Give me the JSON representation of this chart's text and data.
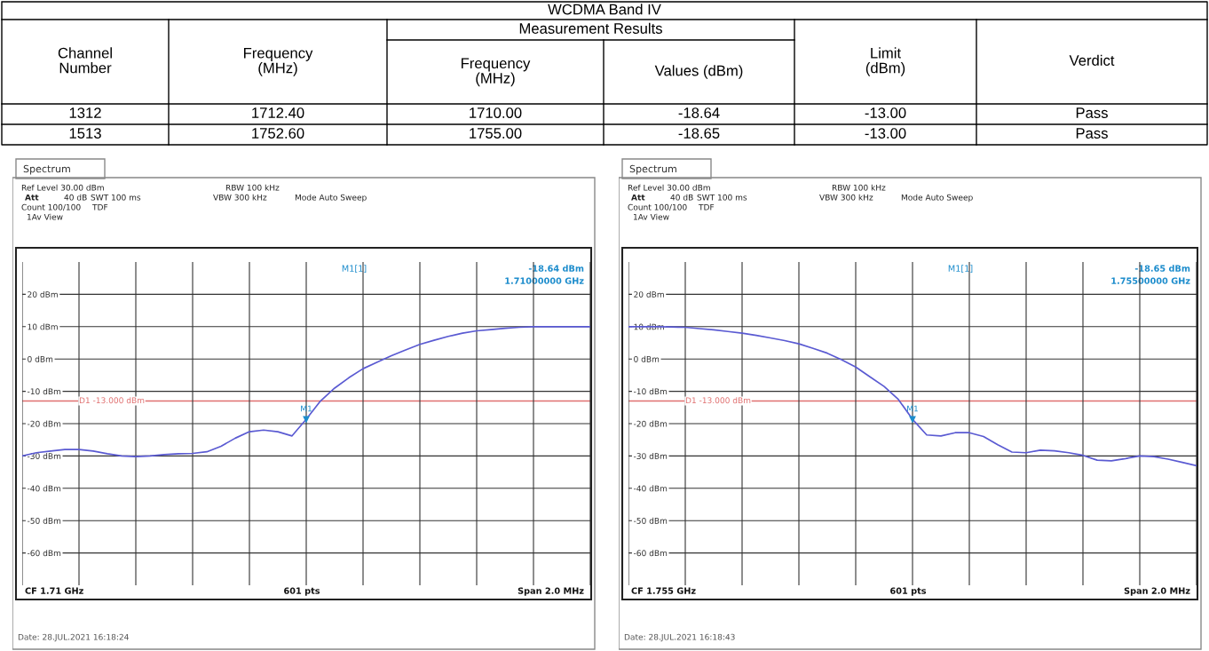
{
  "chart_data": [
    {
      "type": "other",
      "title": "WCDMA Band IV",
      "annotations": [
        "Channel\nNumber",
        "Frequency\n(MHz)",
        "Measurement Results",
        "Frequency\n(MHz)",
        "Values (dBm)",
        "Limit\n(dBm)",
        "Verdict",
        "1312",
        "1712.40",
        "1710.00",
        "-18.64",
        "-13.00",
        "Pass",
        "1513",
        "1752.60",
        "1755.00",
        "-18.65",
        "-13.00",
        "Pass"
      ]
    },
    {
      "type": "line",
      "categories": [
        null,
        null,
        null,
        null,
        null,
        null,
        null,
        null,
        null,
        null,
        null,
        null,
        null,
        null,
        null,
        null,
        null,
        null,
        null,
        null,
        null,
        null,
        null,
        null,
        null,
        null,
        null,
        null,
        null,
        null,
        null,
        null,
        null,
        null,
        null,
        null,
        null,
        null,
        null,
        null,
        null
      ],
      "series": [
        {
          "color": "#5a5ad2",
          "values": [
            -30,
            -29,
            -28.5,
            -28,
            -28,
            -28.5,
            -29.3,
            -30,
            -30.2,
            -30,
            -29.6,
            -29.3,
            -29.2,
            -28.7,
            -27,
            -24.5,
            -22.5,
            -22,
            -22.5,
            -23.8,
            -18.64,
            -13,
            -9,
            -5.8,
            -3,
            -1,
            1,
            2.8,
            4.5,
            5.8,
            7,
            8,
            8.7,
            9.1,
            9.5,
            9.8,
            10,
            10,
            10,
            10,
            10
          ]
        }
      ],
      "ylim": [
        -70,
        30
      ],
      "yticks": [
        {
          "value": -60,
          "label": "-60 dBm"
        },
        {
          "value": -50,
          "label": "-50 dBm"
        },
        {
          "value": -40,
          "label": "-40 dBm"
        },
        {
          "value": -30,
          "label": "-30 dBm"
        },
        {
          "value": -20,
          "label": "-20 dBm"
        },
        {
          "value": -10,
          "label": "-10 dBm"
        },
        {
          "value": 0,
          "label": "0 dBm"
        },
        {
          "value": 10,
          "label": "10 dBm"
        },
        {
          "value": 20,
          "label": "20 dBm"
        }
      ],
      "grid": true,
      "tick_labels": "y",
      "ref_lines": [
        {
          "axis": "y",
          "value": -13,
          "label": "D1 -13.000 dBm",
          "color": "#e07070"
        }
      ],
      "annotations": [
        "Spectrum",
        "Ref Level 30.00 dBm",
        "RBW 100 kHz",
        "Att",
        "40 dB",
        "SWT 100 ms",
        "VBW 300 kHz",
        "Mode Auto Sweep",
        "Count 100/100",
        "TDF",
        "1Av View",
        "M1[1]",
        "-18.64 dBm",
        "1.71000000 GHz",
        "CF 1.71 GHz",
        "601 pts",
        "Span 2.0 MHz",
        "Date: 28.JUL.2021 16:18:24",
        {
          "text": "M1",
          "y": -18.64
        }
      ]
    },
    {
      "type": "line",
      "categories": [
        null,
        null,
        null,
        null,
        null,
        null,
        null,
        null,
        null,
        null,
        null,
        null,
        null,
        null,
        null,
        null,
        null,
        null,
        null,
        null,
        null,
        null,
        null,
        null,
        null,
        null,
        null,
        null,
        null,
        null,
        null,
        null,
        null,
        null,
        null,
        null,
        null,
        null,
        null,
        null,
        null
      ],
      "series": [
        {
          "color": "#5a5ad2",
          "values": [
            10,
            10,
            10,
            9.9,
            9.8,
            9.4,
            9,
            8.5,
            8,
            7.3,
            6.5,
            5.7,
            4.7,
            3.3,
            1.8,
            -0.2,
            -2.5,
            -5.5,
            -8.5,
            -12.5,
            -18.65,
            -23.5,
            -23.8,
            -22.8,
            -22.8,
            -24,
            -26.5,
            -28.8,
            -29,
            -28.2,
            -28.4,
            -29,
            -29.8,
            -31.3,
            -31.5,
            -30.8,
            -30,
            -30.2,
            -31,
            -32,
            -33
          ]
        }
      ],
      "ylim": [
        -70,
        30
      ],
      "yticks": [
        {
          "value": -60,
          "label": "-60 dBm"
        },
        {
          "value": -50,
          "label": "-50 dBm"
        },
        {
          "value": -40,
          "label": "-40 dBm"
        },
        {
          "value": -30,
          "label": "-30 dBm"
        },
        {
          "value": -20,
          "label": "-20 dBm"
        },
        {
          "value": -10,
          "label": "-10 dBm"
        },
        {
          "value": 0,
          "label": "0 dBm"
        },
        {
          "value": 10,
          "label": "10 dBm"
        },
        {
          "value": 20,
          "label": "20 dBm"
        }
      ],
      "grid": true,
      "tick_labels": "y",
      "ref_lines": [
        {
          "axis": "y",
          "value": -13,
          "label": "D1 -13.000 dBm",
          "color": "#e07070"
        }
      ],
      "annotations": [
        "Spectrum",
        "Ref Level 30.00 dBm",
        "RBW 100 kHz",
        "Att",
        "40 dB",
        "SWT 100 ms",
        "VBW 300 kHz",
        "Mode Auto Sweep",
        "Count 100/100",
        "TDF",
        "1Av View",
        "M1[1]",
        "-18.65 dBm",
        "1.75500000 GHz",
        "CF 1.755 GHz",
        "601 pts",
        "Span 2.0 MHz",
        "Date: 28.JUL.2021 16:18:43",
        {
          "text": "M1",
          "y": -18.65
        }
      ]
    }
  ]
}
